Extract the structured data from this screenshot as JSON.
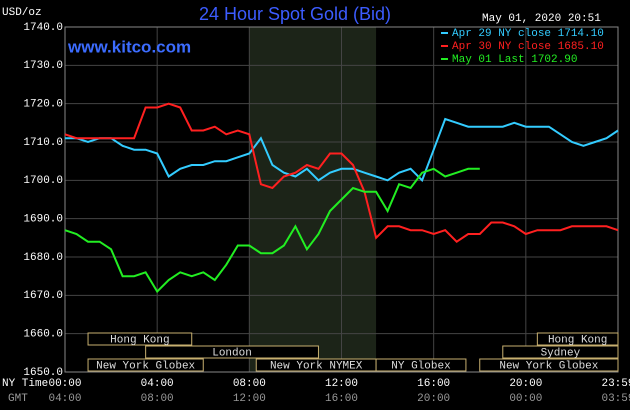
{
  "chart_data": {
    "type": "line",
    "title": "24 Hour Spot Gold (Bid)",
    "y_label": "USD/oz",
    "timestamp": "May 01, 2020 20:51",
    "watermark": "www.kitco.com",
    "x_axis_label": "NY Time",
    "x2_axis_label": "GMT",
    "x": [
      0,
      0.5,
      1,
      1.5,
      2,
      2.5,
      3,
      3.5,
      4,
      4.5,
      5,
      5.5,
      6,
      6.5,
      7,
      7.5,
      8,
      8.5,
      9,
      9.5,
      10,
      10.5,
      11,
      11.5,
      12,
      12.5,
      13,
      13.5,
      14,
      14.5,
      15,
      15.5,
      16,
      16.5,
      17,
      17.5,
      18,
      18.5,
      19,
      19.5,
      20,
      20.5,
      21,
      21.5,
      22,
      22.5,
      23,
      23.5,
      24
    ],
    "series": [
      {
        "name": "Apr 29 NY close 1714.10",
        "color": "#33ccff",
        "values": [
          1711,
          1711,
          1710,
          1711,
          1711,
          1709,
          1708,
          1708,
          1707,
          1701,
          1703,
          1704,
          1704,
          1705,
          1705,
          1706,
          1707,
          1711,
          1704,
          1702,
          1701,
          1703,
          1700,
          1702,
          1703,
          1703,
          1702,
          1701,
          1700,
          1702,
          1703,
          1700,
          1708,
          1716,
          1715,
          1714,
          1714,
          1714,
          1714,
          1715,
          1714,
          1714,
          1714,
          1712,
          1710,
          1709,
          1710,
          1711,
          1713
        ]
      },
      {
        "name": "Apr 30 NY close 1685.10",
        "color": "#ff2020",
        "values": [
          1712,
          1711,
          1711,
          1711,
          1711,
          1711,
          1711,
          1719,
          1719,
          1720,
          1719,
          1713,
          1713,
          1714,
          1712,
          1713,
          1712,
          1699,
          1698,
          1701,
          1702,
          1704,
          1703,
          1707,
          1707,
          1704,
          1697,
          1685,
          1688,
          1688,
          1687,
          1687,
          1686,
          1687,
          1684,
          1686,
          1686,
          1689,
          1689,
          1688,
          1686,
          1687,
          1687,
          1687,
          1688,
          1688,
          1688,
          1688,
          1687
        ]
      },
      {
        "name": "May 01 Last 1702.90",
        "color": "#22ee22",
        "values": [
          1687,
          1686,
          1684,
          1684,
          1682,
          1675,
          1675,
          1676,
          1671,
          1674,
          1676,
          1675,
          1676,
          1674,
          1678,
          1683,
          1683,
          1681,
          1681,
          1683,
          1688,
          1682,
          1686,
          1692,
          1695,
          1698,
          1697,
          1697,
          1692,
          1699,
          1698,
          1702,
          1703,
          1701,
          1702,
          1703,
          1703,
          null,
          null,
          null,
          null,
          null,
          null,
          null,
          null,
          null,
          null,
          null,
          null
        ]
      }
    ],
    "xlim": [
      0,
      24
    ],
    "xticks": [
      {
        "value": 0,
        "label": "00:00"
      },
      {
        "value": 4,
        "label": "04:00"
      },
      {
        "value": 8,
        "label": "08:00"
      },
      {
        "value": 12,
        "label": "12:00"
      },
      {
        "value": 16,
        "label": "16:00"
      },
      {
        "value": 20,
        "label": "20:00"
      },
      {
        "value": 24,
        "label": "23:59"
      }
    ],
    "x2ticks": [
      {
        "value": 0,
        "label": "04:00"
      },
      {
        "value": 4,
        "label": "08:00"
      },
      {
        "value": 8,
        "label": "12:00"
      },
      {
        "value": 12,
        "label": "16:00"
      },
      {
        "value": 16,
        "label": "20:00"
      },
      {
        "value": 20,
        "label": "00:00"
      },
      {
        "value": 24,
        "label": "03:59"
      }
    ],
    "ylim": [
      1650,
      1740
    ],
    "yticks": [
      {
        "value": 1650,
        "label": "1650.0"
      },
      {
        "value": 1660,
        "label": "1660.0"
      },
      {
        "value": 1670,
        "label": "1670.0"
      },
      {
        "value": 1680,
        "label": "1680.0"
      },
      {
        "value": 1690,
        "label": "1690.0"
      },
      {
        "value": 1700,
        "label": "1700.0"
      },
      {
        "value": 1710,
        "label": "1710.0"
      },
      {
        "value": 1720,
        "label": "1720.0"
      },
      {
        "value": 1730,
        "label": "1730.0"
      },
      {
        "value": 1740,
        "label": "1740.0"
      }
    ],
    "grid": true,
    "highlight": [
      8,
      13.5
    ],
    "sessions": [
      {
        "label": "Hong Kong",
        "start": 1,
        "end": 5.5,
        "row": 0
      },
      {
        "label": "Hong Kong",
        "start": 20.5,
        "end": 24,
        "row": 0
      },
      {
        "label": "London",
        "start": 3.5,
        "end": 11,
        "row": 1
      },
      {
        "label": "Sydney",
        "start": 19,
        "end": 24,
        "row": 1
      },
      {
        "label": "New York Globex",
        "start": 1,
        "end": 6,
        "row": 2
      },
      {
        "label": "New York NYMEX",
        "start": 8.3,
        "end": 13.5,
        "row": 2
      },
      {
        "label": "NY Globex",
        "start": 13.5,
        "end": 17.4,
        "row": 2
      },
      {
        "label": "New York Globex",
        "start": 18,
        "end": 24,
        "row": 2
      }
    ]
  }
}
